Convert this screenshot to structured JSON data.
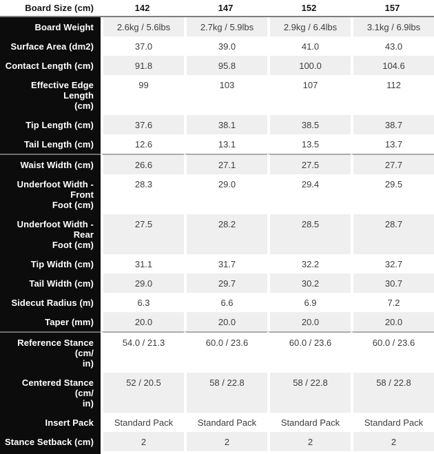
{
  "colors": {
    "label_column_bg": "#0c0c0c",
    "row_stripe": "#efefef",
    "divider": "#7d7d7d",
    "value_text": "#3d3d3d"
  },
  "table": {
    "header": {
      "label": "Board Size (cm)",
      "sizes": [
        "142",
        "147",
        "152",
        "157"
      ]
    },
    "rows": [
      {
        "label": "Board Weight",
        "values": [
          "2.6kg / 5.6lbs",
          "2.7kg / 5.9lbs",
          "2.9kg / 6.4lbs",
          "3.1kg / 6.9lbs"
        ],
        "section_start": false
      },
      {
        "label": "Surface Area (dm2)",
        "values": [
          "37.0",
          "39.0",
          "41.0",
          "43.0"
        ],
        "section_start": false
      },
      {
        "label": "Contact Length (cm)",
        "values": [
          "91.8",
          "95.8",
          "100.0",
          "104.6"
        ],
        "section_start": false
      },
      {
        "label": "Effective Edge Length\n(cm)",
        "values": [
          "99",
          "103",
          "107",
          "112"
        ],
        "section_start": false
      },
      {
        "label": "Tip Length (cm)",
        "values": [
          "37.6",
          "38.1",
          "38.5",
          "38.7"
        ],
        "section_start": false
      },
      {
        "label": "Tail Length (cm)",
        "values": [
          "12.6",
          "13.1",
          "13.5",
          "13.7"
        ],
        "section_start": false
      },
      {
        "label": "Waist Width (cm)",
        "values": [
          "26.6",
          "27.1",
          "27.5",
          "27.7"
        ],
        "section_start": true
      },
      {
        "label": "Underfoot Width - Front\nFoot (cm)",
        "values": [
          "28.3",
          "29.0",
          "29.4",
          "29.5"
        ],
        "section_start": false
      },
      {
        "label": "Underfoot Width - Rear\nFoot (cm)",
        "values": [
          "27.5",
          "28.2",
          "28.5",
          "28.7"
        ],
        "section_start": false
      },
      {
        "label": "Tip Width (cm)",
        "values": [
          "31.1",
          "31.7",
          "32.2",
          "32.7"
        ],
        "section_start": false
      },
      {
        "label": "Tail Width (cm)",
        "values": [
          "29.0",
          "29.7",
          "30.2",
          "30.7"
        ],
        "section_start": false
      },
      {
        "label": "Sidecut Radius (m)",
        "values": [
          "6.3",
          "6.6",
          "6.9",
          "7.2"
        ],
        "section_start": false
      },
      {
        "label": "Taper (mm)",
        "values": [
          "20.0",
          "20.0",
          "20.0",
          "20.0"
        ],
        "section_start": false
      },
      {
        "label": "Reference Stance (cm/\nin)",
        "values": [
          "54.0 / 21.3",
          "60.0 / 23.6",
          "60.0 / 23.6",
          "60.0 / 23.6"
        ],
        "section_start": true
      },
      {
        "label": "Centered Stance (cm/\nin)",
        "values": [
          "52 / 20.5",
          "58 / 22.8",
          "58 / 22.8",
          "58 / 22.8"
        ],
        "section_start": false
      },
      {
        "label": "Insert Pack",
        "values": [
          "Standard Pack",
          "Standard Pack",
          "Standard Pack",
          "Standard Pack"
        ],
        "section_start": false
      },
      {
        "label": "Stance Setback (cm)",
        "values": [
          "2",
          "2",
          "2",
          "2"
        ],
        "section_start": false
      }
    ]
  }
}
